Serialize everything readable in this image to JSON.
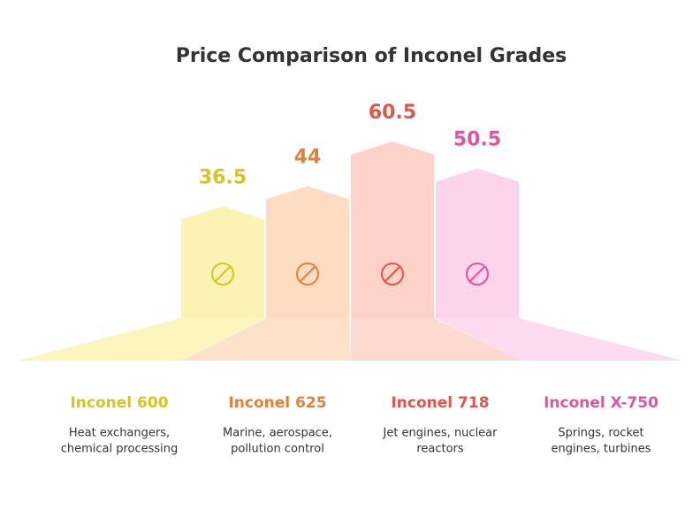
{
  "chart_data": {
    "type": "bar",
    "title": "Price Comparison of Inconel Grades",
    "categories": [
      "Inconel 600",
      "Inconel 625",
      "Inconel 718",
      "Inconel X-750"
    ],
    "values": [
      36.5,
      44,
      60.5,
      50.5
    ],
    "descriptions": [
      [
        "Heat exchangers,",
        "chemical processing"
      ],
      [
        "Marine, aerospace,",
        "pollution control"
      ],
      [
        "Jet engines, nuclear",
        "reactors"
      ],
      [
        "Springs, rocket",
        "engines, turbines"
      ]
    ],
    "colors": [
      "#d8c41f",
      "#e2823a",
      "#e0564b",
      "#e0559f"
    ],
    "fills": [
      "#fbf3b3",
      "#fddcc1",
      "#fdd2c9",
      "#fcd4ec"
    ]
  }
}
